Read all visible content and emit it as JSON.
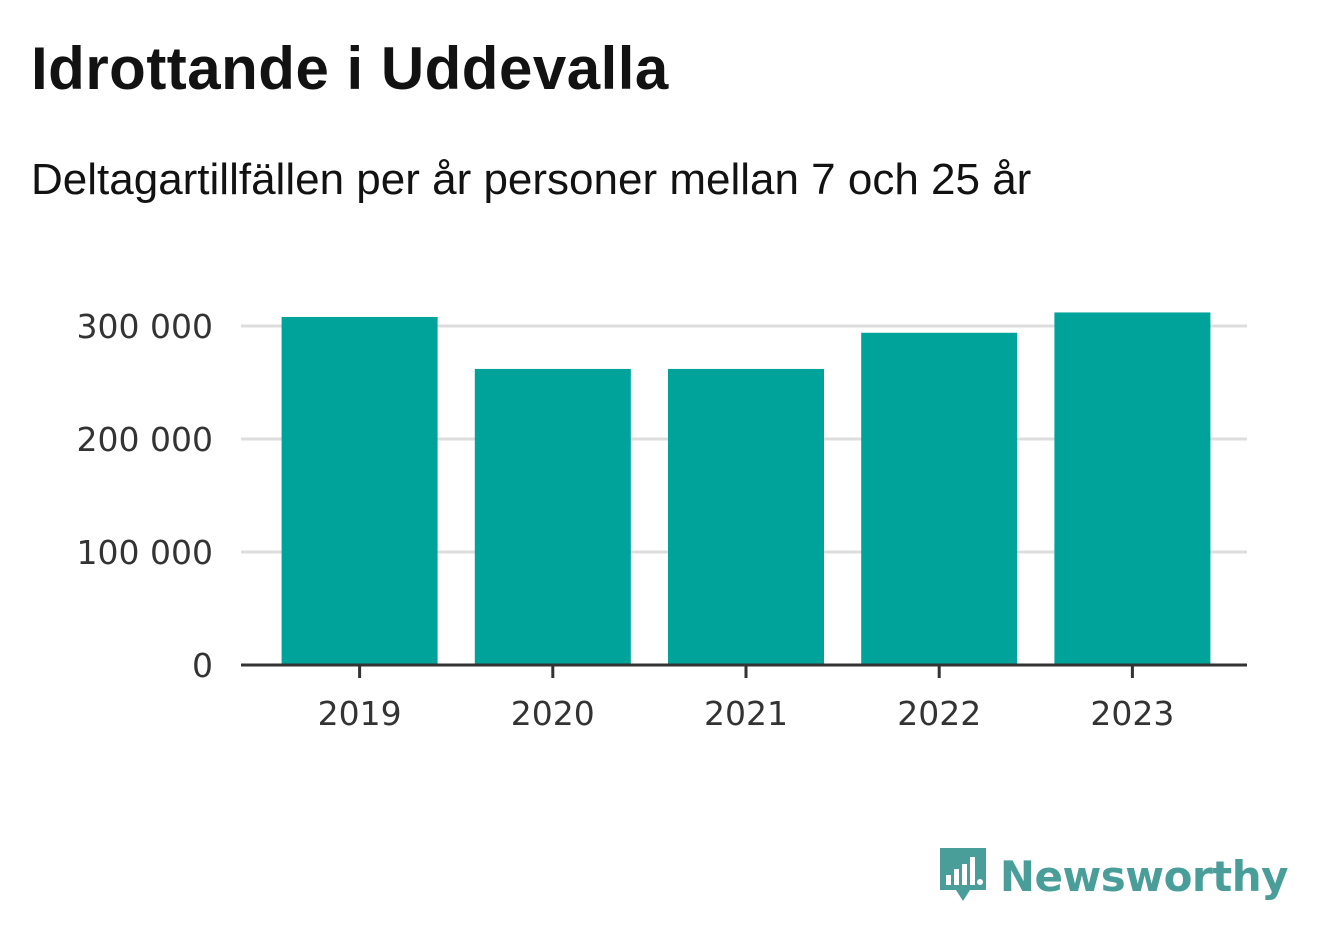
{
  "header": {
    "title": "Idrottande i Uddevalla",
    "subtitle": "Deltagartillfällen per år personer mellan 7 och 25 år"
  },
  "brand": {
    "name": "Newsworthy",
    "icon": "bar-chart-speech-bubble-icon",
    "color": "#4a9e9a"
  },
  "colors": {
    "bar": "#00a39a",
    "grid": "#dddddd",
    "axis": "#333333"
  },
  "chart_data": {
    "type": "bar",
    "title": "Idrottande i Uddevalla",
    "subtitle": "Deltagartillfällen per år personer mellan 7 och 25 år",
    "categories": [
      "2019",
      "2020",
      "2021",
      "2022",
      "2023"
    ],
    "values": [
      308000,
      262000,
      262000,
      294000,
      312000
    ],
    "xlabel": "",
    "ylabel": "",
    "ylim": [
      0,
      300000
    ],
    "yticks": [
      0,
      100000,
      200000,
      300000
    ],
    "ytick_labels": [
      "0",
      "100 000",
      "200 000",
      "300 000"
    ],
    "grid": true,
    "legend": "none"
  }
}
